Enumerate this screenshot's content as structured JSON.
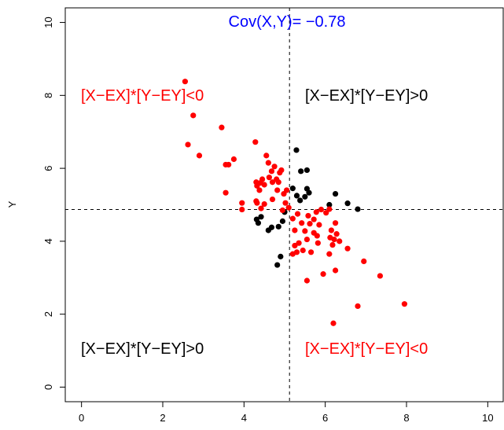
{
  "chart_data": {
    "type": "scatter",
    "title": "",
    "xlabel": "",
    "ylabel": "Y",
    "xlim": [
      -0.4,
      10.4
    ],
    "ylim": [
      -0.4,
      10.4
    ],
    "x_ticks": [
      "0",
      "2",
      "4",
      "6",
      "8",
      "10"
    ],
    "y_ticks": [
      "0",
      "2",
      "4",
      "6",
      "8",
      "10"
    ],
    "grid": false,
    "colors": {
      "same_sign": "#000000",
      "opposite_sign": "#ff0000",
      "cov_label": "#0000ff"
    },
    "reference_lines": {
      "mean_x": 5.12,
      "mean_y": 4.87
    },
    "annotations": {
      "cov": "Cov(X,Y)= −0.78",
      "top_left": "[X−EX]*[Y−EY]<0",
      "top_right": "[X−EX]*[Y−EY]>0",
      "bottom_left": "[X−EX]*[Y−EY]>0",
      "bottom_right": "[X−EX]*[Y−EY]<0"
    },
    "series": [
      {
        "group": "product-positive",
        "points": [
          [
            5.29,
            6.5
          ],
          [
            5.4,
            5.92
          ],
          [
            5.55,
            5.95
          ],
          [
            5.55,
            5.44
          ],
          [
            5.2,
            5.45
          ],
          [
            5.3,
            5.25
          ],
          [
            5.38,
            5.12
          ],
          [
            5.5,
            5.22
          ],
          [
            5.6,
            5.33
          ],
          [
            6.25,
            5.3
          ],
          [
            6.1,
            5.0
          ],
          [
            6.55,
            5.04
          ],
          [
            6.8,
            4.88
          ],
          [
            4.31,
            4.6
          ],
          [
            4.42,
            4.67
          ],
          [
            4.35,
            4.5
          ],
          [
            4.6,
            4.3
          ],
          [
            4.68,
            4.38
          ],
          [
            4.85,
            4.4
          ],
          [
            4.95,
            4.55
          ],
          [
            5.0,
            4.8
          ],
          [
            4.9,
            3.58
          ],
          [
            4.82,
            3.35
          ]
        ]
      },
      {
        "group": "product-negative",
        "points": [
          [
            2.55,
            8.38
          ],
          [
            2.75,
            7.45
          ],
          [
            2.62,
            6.65
          ],
          [
            2.9,
            6.35
          ],
          [
            3.45,
            7.12
          ],
          [
            3.55,
            6.1
          ],
          [
            3.62,
            6.1
          ],
          [
            3.75,
            6.25
          ],
          [
            3.55,
            5.33
          ],
          [
            3.95,
            5.05
          ],
          [
            3.95,
            4.87
          ],
          [
            4.28,
            6.72
          ],
          [
            4.3,
            5.62
          ],
          [
            4.32,
            5.52
          ],
          [
            4.38,
            5.4
          ],
          [
            4.4,
            5.6
          ],
          [
            4.45,
            5.7
          ],
          [
            4.5,
            5.55
          ],
          [
            4.55,
            6.35
          ],
          [
            4.6,
            6.15
          ],
          [
            4.62,
            5.75
          ],
          [
            4.68,
            5.92
          ],
          [
            4.75,
            6.05
          ],
          [
            4.8,
            5.7
          ],
          [
            4.85,
            5.62
          ],
          [
            4.7,
            5.62
          ],
          [
            4.7,
            5.15
          ],
          [
            4.82,
            5.4
          ],
          [
            4.88,
            5.88
          ],
          [
            4.92,
            5.95
          ],
          [
            4.98,
            5.3
          ],
          [
            5.05,
            5.4
          ],
          [
            5.1,
            4.92
          ],
          [
            4.3,
            5.1
          ],
          [
            4.32,
            5.05
          ],
          [
            4.42,
            4.9
          ],
          [
            4.5,
            5.02
          ],
          [
            4.95,
            4.85
          ],
          [
            5.02,
            5.05
          ],
          [
            5.2,
            4.62
          ],
          [
            5.25,
            4.3
          ],
          [
            5.32,
            4.75
          ],
          [
            5.42,
            4.5
          ],
          [
            5.5,
            4.28
          ],
          [
            5.58,
            4.7
          ],
          [
            5.62,
            4.48
          ],
          [
            5.72,
            4.6
          ],
          [
            5.78,
            4.8
          ],
          [
            5.85,
            4.45
          ],
          [
            5.8,
            4.15
          ],
          [
            5.82,
            3.95
          ],
          [
            5.55,
            4.05
          ],
          [
            5.45,
            3.75
          ],
          [
            5.65,
            3.7
          ],
          [
            5.35,
            3.95
          ],
          [
            5.25,
            3.88
          ],
          [
            5.2,
            3.65
          ],
          [
            5.3,
            3.7
          ],
          [
            5.72,
            4.23
          ],
          [
            5.9,
            4.87
          ],
          [
            6.02,
            4.78
          ],
          [
            6.1,
            4.88
          ],
          [
            6.25,
            4.5
          ],
          [
            6.28,
            4.2
          ],
          [
            6.15,
            4.3
          ],
          [
            6.12,
            4.1
          ],
          [
            6.18,
            3.9
          ],
          [
            6.22,
            4.05
          ],
          [
            6.35,
            4.0
          ],
          [
            6.1,
            3.65
          ],
          [
            6.25,
            3.2
          ],
          [
            5.95,
            3.1
          ],
          [
            5.55,
            2.92
          ],
          [
            6.55,
            3.8
          ],
          [
            6.95,
            3.45
          ],
          [
            7.35,
            3.05
          ],
          [
            6.8,
            2.22
          ],
          [
            7.95,
            2.28
          ],
          [
            6.2,
            1.75
          ]
        ]
      }
    ]
  }
}
